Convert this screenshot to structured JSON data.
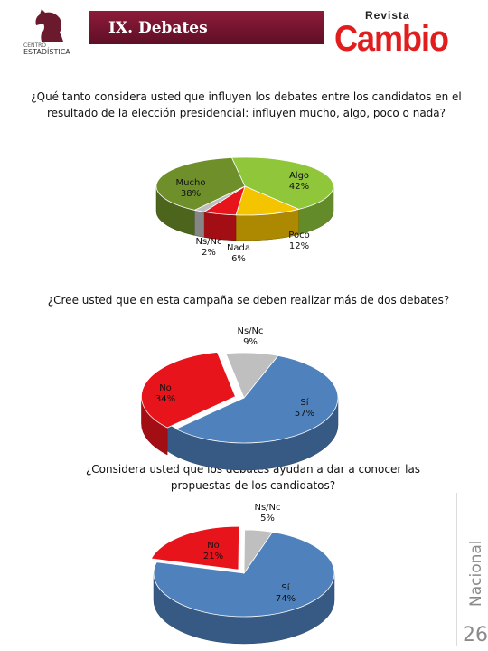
{
  "header": {
    "logo_line1": "CENTRO",
    "logo_line2": "ESTADÍSTICA",
    "title": "IX. Debates",
    "magazine_top": "Revista",
    "magazine_name": "Cambio"
  },
  "side_label": "Nacional",
  "page_number": "26",
  "colors": {
    "green": "#8fc63a",
    "olive": "#6e8f2a",
    "yellow": "#f5c400",
    "red": "#e8141b",
    "gray": "#bfbfbf",
    "blue": "#4f81bd",
    "title_bar": "#7a1530",
    "brand_red": "#e11d1d"
  },
  "chart_data": [
    {
      "type": "pie",
      "title": "¿Qué tanto considera usted que influyen los debates entre los candidatos en el resultado de la elección presidencial: influyen mucho, algo, poco o nada?",
      "slices": [
        {
          "label": "Algo",
          "value": 42,
          "display": "42%",
          "color": "#8fc63a"
        },
        {
          "label": "Poco",
          "value": 12,
          "display": "12%",
          "color": "#f5c400"
        },
        {
          "label": "Nada",
          "value": 6,
          "display": "6%",
          "color": "#e8141b"
        },
        {
          "label": "Ns/Nc",
          "value": 2,
          "display": "2%",
          "color": "#bfbfbf"
        },
        {
          "label": "Mucho",
          "value": 38,
          "display": "38%",
          "color": "#6e8f2a"
        }
      ]
    },
    {
      "type": "pie",
      "title": "¿Cree usted que en esta campaña se deben realizar más de dos debates?",
      "slices": [
        {
          "label": "Sí",
          "value": 57,
          "display": "57%",
          "color": "#4f81bd"
        },
        {
          "label": "No",
          "value": 34,
          "display": "34%",
          "color": "#e8141b"
        },
        {
          "label": "Ns/Nc",
          "value": 9,
          "display": "9%",
          "color": "#bfbfbf"
        }
      ]
    },
    {
      "type": "pie",
      "title": "¿Considera usted que los debates ayudan a dar a conocer las propuestas de los candidatos?",
      "slices": [
        {
          "label": "Sí",
          "value": 74,
          "display": "74%",
          "color": "#4f81bd"
        },
        {
          "label": "No",
          "value": 21,
          "display": "21%",
          "color": "#e8141b"
        },
        {
          "label": "Ns/Nc",
          "value": 5,
          "display": "5%",
          "color": "#bfbfbf"
        }
      ]
    }
  ]
}
